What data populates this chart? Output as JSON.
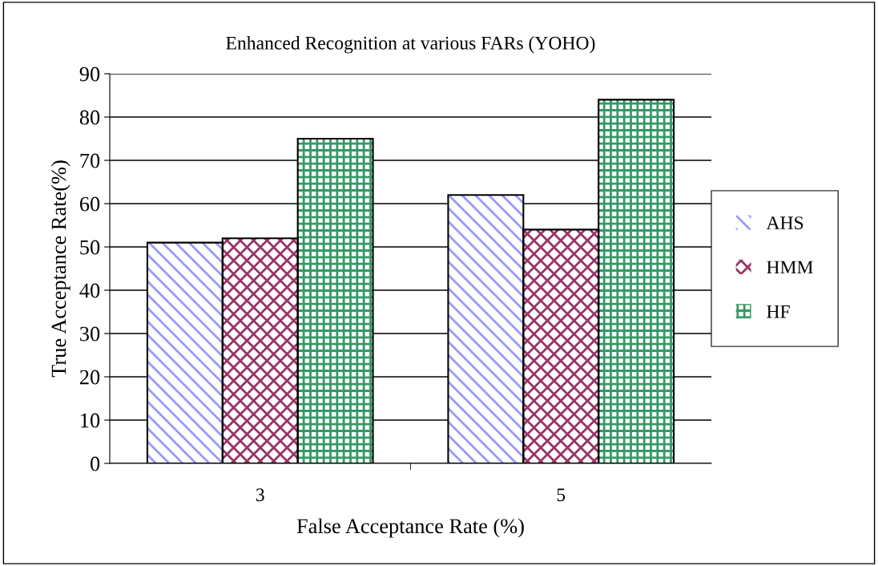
{
  "chart_data": {
    "type": "bar",
    "title": "Enhanced Recognition at various FARs (YOHO)",
    "xlabel": "False Acceptance Rate (%)",
    "ylabel": "True Acceptance Rate(%)",
    "categories": [
      "3",
      "5"
    ],
    "series": [
      {
        "name": "AHS",
        "color": "#9999ff",
        "values": [
          51,
          62
        ]
      },
      {
        "name": "HMM",
        "color": "#993366",
        "values": [
          52,
          54
        ]
      },
      {
        "name": "HF",
        "color": "#339966",
        "values": [
          75,
          84
        ]
      }
    ],
    "ylim": [
      0,
      90
    ],
    "yticks": [
      0,
      10,
      20,
      30,
      40,
      50,
      60,
      70,
      80,
      90
    ],
    "grid": "y",
    "legend": "right"
  }
}
